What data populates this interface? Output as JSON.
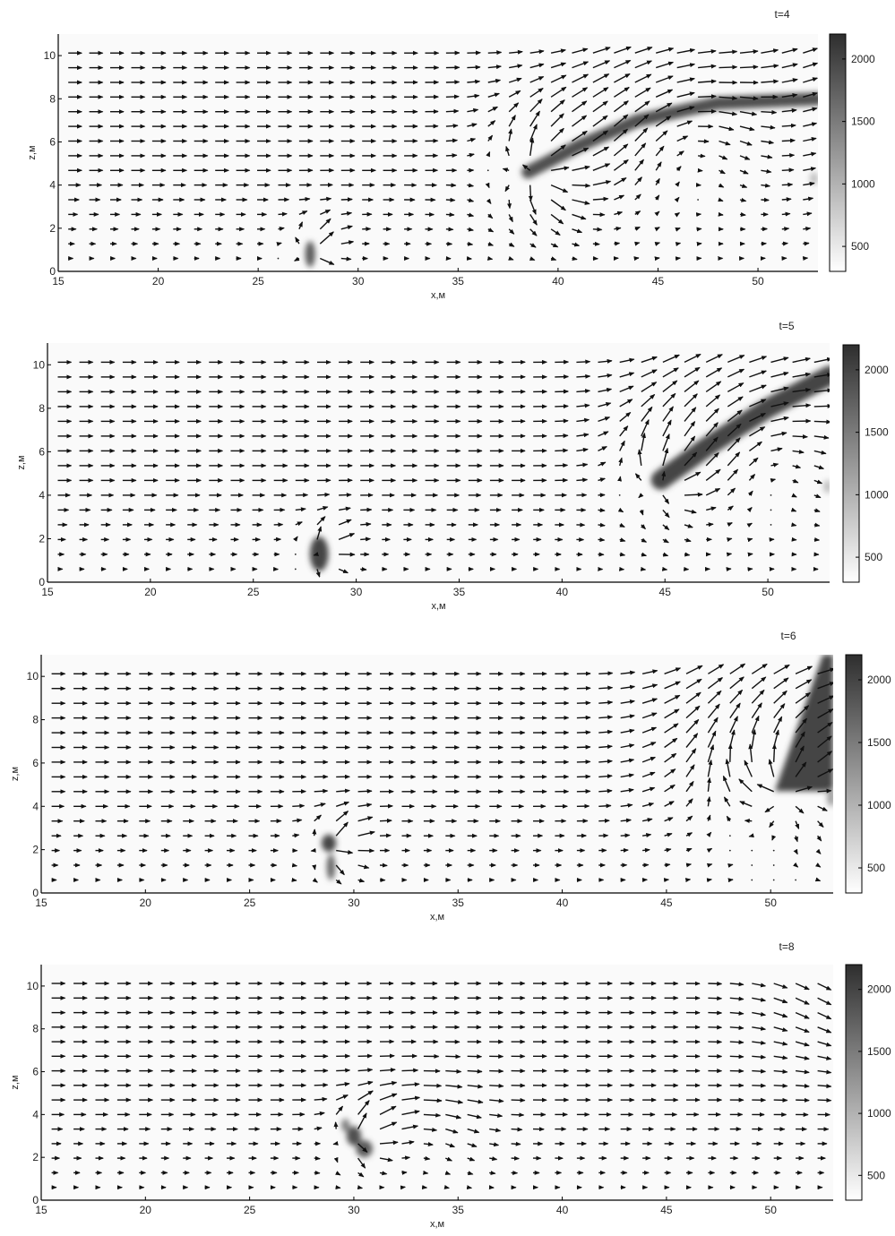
{
  "chart_data": [
    {
      "type": "heatmap",
      "title": "t=4",
      "xlabel": "x,м",
      "ylabel": "z,м",
      "xlim": [
        15,
        53
      ],
      "ylim": [
        0,
        11
      ],
      "xticks": [
        15,
        20,
        25,
        30,
        35,
        40,
        45,
        50
      ],
      "yticks": [
        0,
        2,
        4,
        6,
        8,
        10
      ],
      "colorbar": {
        "min": 300,
        "max": 2200,
        "ticks": [
          500,
          1000,
          1500,
          2000
        ]
      },
      "colormap": [
        "#ffffff",
        "#2e2e2e"
      ],
      "plumes": [
        {
          "kind": "arc",
          "points": [
            [
              38.5,
              4.6
            ],
            [
              41,
              5.8
            ],
            [
              44,
              7.0
            ],
            [
              48,
              7.8
            ],
            [
              53,
              8.0
            ]
          ],
          "width": 0.6,
          "value": 1900
        },
        {
          "kind": "blob",
          "x": 27.6,
          "z": 0.8,
          "rx": 0.25,
          "rz": 0.6,
          "value": 1800
        },
        {
          "kind": "blob",
          "x": 52.8,
          "z": 4.3,
          "rx": 0.2,
          "rz": 0.3,
          "value": 900
        }
      ],
      "flow": {
        "x0": 15.5,
        "dx": 1.05,
        "nx": 36,
        "z0": 0.6,
        "dz": 0.68,
        "nz": 15,
        "uniform": 1.0,
        "sources": [
          {
            "x": 27.8,
            "z": 0.8,
            "strength": 5.0,
            "radius": 1.4
          },
          {
            "x": 39,
            "z": 4.6,
            "strength": 3.0,
            "radius": 3.2
          }
        ],
        "swirls": [
          {
            "x": 46,
            "z": 6.5,
            "strength": -1.4,
            "radius": 4.0
          }
        ],
        "updraft": {
          "x": 50,
          "z": 8,
          "strength": 0.6,
          "radius": 6
        }
      }
    },
    {
      "type": "heatmap",
      "title": "t=5",
      "xlabel": "x,м",
      "ylabel": "z,м",
      "xlim": [
        15,
        53
      ],
      "ylim": [
        0,
        11
      ],
      "xticks": [
        15,
        20,
        25,
        30,
        35,
        40,
        45,
        50
      ],
      "yticks": [
        0,
        2,
        4,
        6,
        8,
        10
      ],
      "colorbar": {
        "min": 300,
        "max": 2200,
        "ticks": [
          500,
          1000,
          1500,
          2000
        ]
      },
      "colormap": [
        "#ffffff",
        "#2e2e2e"
      ],
      "plumes": [
        {
          "kind": "arc",
          "points": [
            [
              44.8,
              4.7
            ],
            [
              47,
              6.2
            ],
            [
              50,
              8.0
            ],
            [
              53,
              9.5
            ]
          ],
          "width": 0.9,
          "value": 2000
        },
        {
          "kind": "blob",
          "x": 28.2,
          "z": 1.3,
          "rx": 0.45,
          "rz": 0.8,
          "value": 2000
        },
        {
          "kind": "blob",
          "x": 52.9,
          "z": 4.4,
          "rx": 0.2,
          "rz": 0.3,
          "value": 900
        }
      ],
      "flow": {
        "x0": 15.5,
        "dx": 1.05,
        "nx": 36,
        "z0": 0.6,
        "dz": 0.68,
        "nz": 15,
        "uniform": 1.0,
        "sources": [
          {
            "x": 28.3,
            "z": 1.3,
            "strength": 4.0,
            "radius": 1.4
          },
          {
            "x": 45,
            "z": 4.7,
            "strength": 2.5,
            "radius": 3.0
          }
        ],
        "swirls": [
          {
            "x": 49,
            "z": 6.5,
            "strength": -1.6,
            "radius": 4.0
          }
        ],
        "updraft": {
          "x": 51,
          "z": 8,
          "strength": 0.9,
          "radius": 5
        }
      }
    },
    {
      "type": "heatmap",
      "title": "t=6",
      "xlabel": "x,м",
      "ylabel": "z,м",
      "xlim": [
        15,
        53
      ],
      "ylim": [
        0,
        11
      ],
      "xticks": [
        15,
        20,
        25,
        30,
        35,
        40,
        45,
        50
      ],
      "yticks": [
        0,
        2,
        4,
        6,
        8,
        10
      ],
      "colorbar": {
        "min": 300,
        "max": 2200,
        "ticks": [
          500,
          1000,
          1500,
          2000
        ]
      },
      "colormap": [
        "#ffffff",
        "#2e2e2e"
      ],
      "plumes": [
        {
          "kind": "wedge",
          "points": [
            [
              50.2,
              4.7
            ],
            [
              53,
              4.7
            ],
            [
              53,
              11
            ],
            [
              52.5,
              11
            ]
          ],
          "value": 2000
        },
        {
          "kind": "blob",
          "x": 28.8,
          "z": 2.3,
          "rx": 0.35,
          "rz": 0.4,
          "value": 2000
        },
        {
          "kind": "blob",
          "x": 28.9,
          "z": 1.2,
          "rx": 0.2,
          "rz": 0.6,
          "value": 1700
        },
        {
          "kind": "blob",
          "x": 52.9,
          "z": 4.4,
          "rx": 0.2,
          "rz": 0.4,
          "value": 1200
        }
      ],
      "flow": {
        "x0": 15.5,
        "dx": 1.05,
        "nx": 36,
        "z0": 0.6,
        "dz": 0.68,
        "nz": 15,
        "uniform": 1.0,
        "sources": [
          {
            "x": 29,
            "z": 2.0,
            "strength": 3.5,
            "radius": 1.5
          },
          {
            "x": 50.5,
            "z": 4.8,
            "strength": 2.5,
            "radius": 3.0
          }
        ],
        "swirls": [
          {
            "x": 51,
            "z": 7,
            "strength": -1.8,
            "radius": 4.5
          }
        ],
        "updraft": {
          "x": 52,
          "z": 8,
          "strength": 1.4,
          "radius": 4
        }
      }
    },
    {
      "type": "heatmap",
      "title": "t=8",
      "xlabel": "x,м",
      "ylabel": "z,м",
      "xlim": [
        15,
        53
      ],
      "ylim": [
        0,
        11
      ],
      "xticks": [
        15,
        20,
        25,
        30,
        35,
        40,
        45,
        50
      ],
      "yticks": [
        0,
        2,
        4,
        6,
        8,
        10
      ],
      "colorbar": {
        "min": 300,
        "max": 2200,
        "ticks": [
          500,
          1000,
          1500,
          2000
        ]
      },
      "colormap": [
        "#ffffff",
        "#2e2e2e"
      ],
      "plumes": [
        {
          "kind": "blob",
          "x": 30.0,
          "z": 3.0,
          "rx": 0.35,
          "rz": 0.45,
          "value": 1900
        },
        {
          "kind": "blob",
          "x": 30.5,
          "z": 2.4,
          "rx": 0.4,
          "rz": 0.4,
          "value": 1800
        },
        {
          "kind": "blob",
          "x": 29.6,
          "z": 3.5,
          "rx": 0.2,
          "rz": 0.3,
          "value": 1500
        }
      ],
      "flow": {
        "x0": 15.5,
        "dx": 1.05,
        "nx": 36,
        "z0": 0.6,
        "dz": 0.68,
        "nz": 15,
        "uniform": 1.0,
        "sources": [
          {
            "x": 30.2,
            "z": 2.8,
            "strength": 3.5,
            "radius": 1.6
          }
        ],
        "swirls": [
          {
            "x": 33,
            "z": 2.8,
            "strength": -1.0,
            "radius": 2.5
          }
        ],
        "updraft": {
          "x": 52,
          "z": 9.5,
          "strength": -0.5,
          "radius": 3
        }
      }
    }
  ]
}
